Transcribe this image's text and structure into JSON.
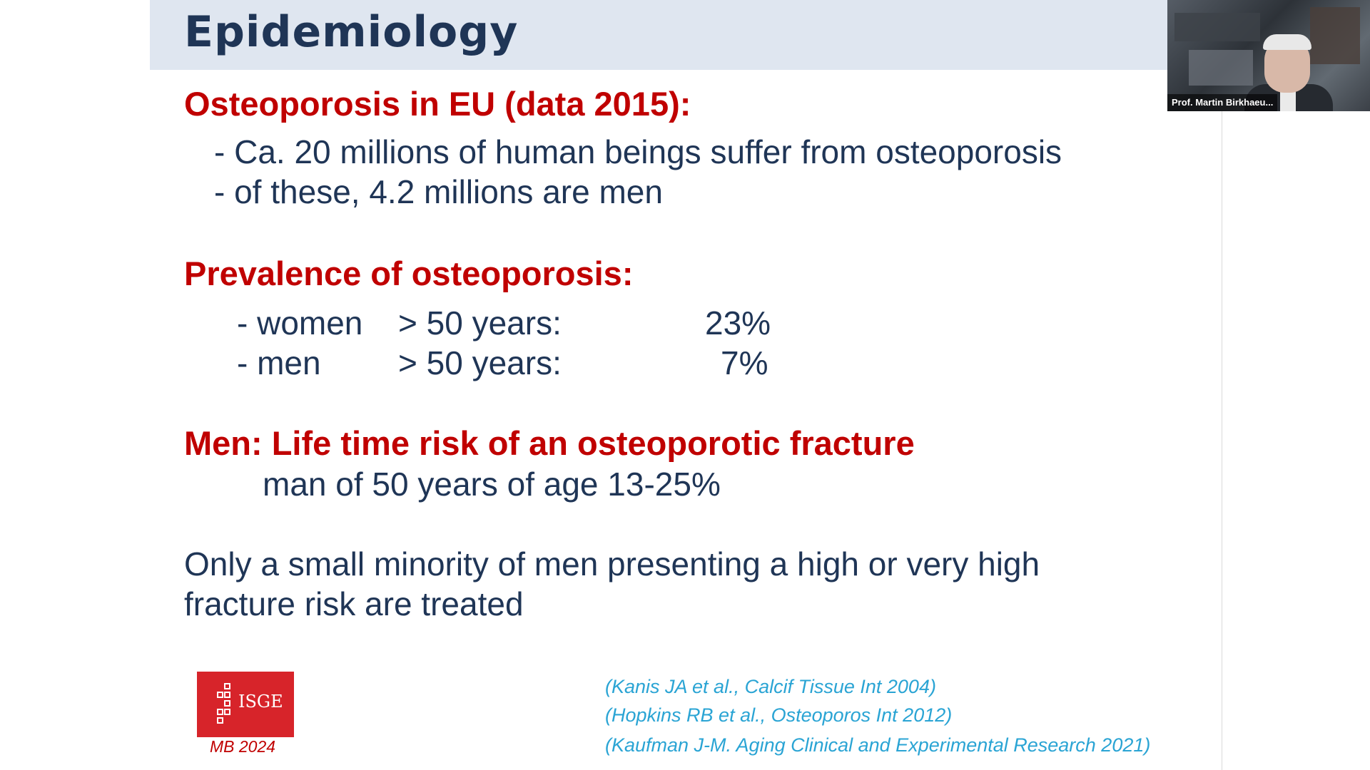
{
  "slide": {
    "title": "Epidemiology",
    "section1": {
      "heading": "Osteoporosis in EU (data 2015):",
      "lines": [
        "- Ca. 20 millions of human beings  suffer from osteoporosis",
        "- of these, 4.2 millions are men"
      ]
    },
    "section2": {
      "heading": "Prevalence of osteoporosis:",
      "rows": [
        {
          "group": "- women",
          "age": "> 50 years:",
          "value": "23%"
        },
        {
          "group": "- men",
          "age": "> 50 years:",
          "value": "7%"
        }
      ]
    },
    "section3": {
      "heading": "Men: Life time risk of an osteoporotic fracture",
      "line": "man of 50 years of age  13-25%"
    },
    "closing": [
      "Only a small  minority of men presenting a high or very high",
      "fracture risk are treated"
    ],
    "logo": {
      "text": "ISGE",
      "caption": "MB 2024",
      "color": "#d7242a"
    },
    "references": [
      "(Kanis JA et al., Calcif Tissue Int 2004)",
      "(Hopkins RB et al., Osteoporos Int 2012)",
      "(Kaufman J-M. Aging Clinical and Experimental Research 2021)"
    ]
  },
  "video": {
    "participant_name": "Prof. Martin Birkhaeu..."
  },
  "colors": {
    "title": "#1f3556",
    "heading": "#c00000",
    "reference": "#2aa4d4",
    "title_bar": "#dfe6f0"
  }
}
